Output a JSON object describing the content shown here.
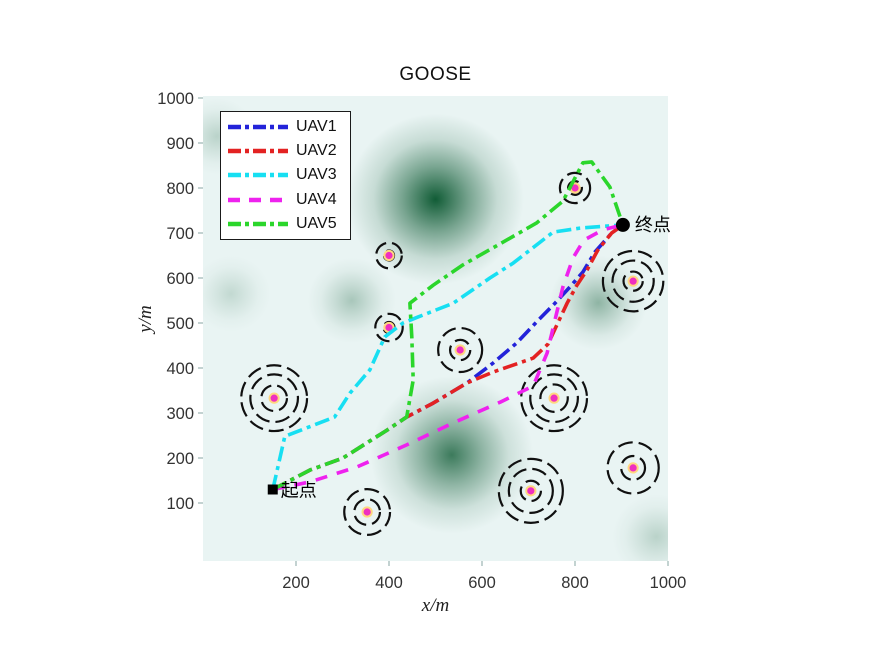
{
  "window": {
    "background": "#ffffff"
  },
  "chart_data": {
    "type": "line",
    "title": "GOOSE",
    "xlabel": "x/m",
    "ylabel": "y/m",
    "xlim": [
      0,
      1000
    ],
    "ylim": [
      0,
      1000
    ],
    "xticks": [
      200,
      400,
      600,
      800,
      1000
    ],
    "yticks": [
      100,
      200,
      300,
      400,
      500,
      600,
      700,
      800,
      900,
      1000
    ],
    "grid": false,
    "legend": {
      "position": "top-left"
    },
    "colors": {
      "plot_background": "#e9f4f3",
      "threat_blob": "#115c36",
      "obstacle_ring": "#101010",
      "obstacle_center_fill": "#ef2fc0",
      "obstacle_center_halo": "#ffd780",
      "tick_text": "#333333",
      "annotation_text": "#000000"
    },
    "series": [
      {
        "name": "UAV1",
        "color": "#2323d9",
        "style": "dash-dot",
        "points": [
          [
            150,
            130
          ],
          [
            230,
            173
          ],
          [
            301,
            200
          ],
          [
            396,
            262
          ],
          [
            438,
            291
          ],
          [
            495,
            322
          ],
          [
            568,
            367
          ],
          [
            624,
            411
          ],
          [
            675,
            456
          ],
          [
            718,
            503
          ],
          [
            757,
            544
          ],
          [
            789,
            580
          ],
          [
            817,
            613
          ],
          [
            843,
            658
          ],
          [
            879,
            700
          ],
          [
            903,
            718
          ]
        ]
      },
      {
        "name": "UAV2",
        "color": "#e32222",
        "style": "dash-dot",
        "points": [
          [
            150,
            130
          ],
          [
            230,
            173
          ],
          [
            301,
            200
          ],
          [
            396,
            262
          ],
          [
            438,
            291
          ],
          [
            495,
            322
          ],
          [
            568,
            367
          ],
          [
            624,
            391
          ],
          [
            710,
            422
          ],
          [
            742,
            453
          ],
          [
            763,
            500
          ],
          [
            783,
            544
          ],
          [
            804,
            584
          ],
          [
            826,
            618
          ],
          [
            849,
            662
          ],
          [
            879,
            700
          ],
          [
            903,
            718
          ]
        ]
      },
      {
        "name": "UAV3",
        "color": "#17dff2",
        "style": "dash-dot",
        "points": [
          [
            150,
            130
          ],
          [
            176,
            248
          ],
          [
            283,
            291
          ],
          [
            316,
            344
          ],
          [
            359,
            396
          ],
          [
            391,
            469
          ],
          [
            430,
            500
          ],
          [
            462,
            513
          ],
          [
            538,
            544
          ],
          [
            617,
            600
          ],
          [
            667,
            633
          ],
          [
            753,
            702
          ],
          [
            811,
            711
          ],
          [
            903,
            718
          ]
        ]
      },
      {
        "name": "UAV4",
        "color": "#ee22ee",
        "style": "dashed",
        "points": [
          [
            150,
            130
          ],
          [
            230,
            147
          ],
          [
            331,
            180
          ],
          [
            438,
            229
          ],
          [
            538,
            278
          ],
          [
            639,
            324
          ],
          [
            710,
            360
          ],
          [
            740,
            433
          ],
          [
            757,
            507
          ],
          [
            774,
            580
          ],
          [
            796,
            645
          ],
          [
            819,
            684
          ],
          [
            860,
            707
          ],
          [
            903,
            718
          ]
        ]
      },
      {
        "name": "UAV5",
        "color": "#2bd62b",
        "style": "dash-dot",
        "points": [
          [
            150,
            130
          ],
          [
            230,
            173
          ],
          [
            301,
            200
          ],
          [
            396,
            262
          ],
          [
            438,
            291
          ],
          [
            452,
            373
          ],
          [
            449,
            469
          ],
          [
            445,
            544
          ],
          [
            495,
            584
          ],
          [
            559,
            629
          ],
          [
            639,
            676
          ],
          [
            717,
            722
          ],
          [
            774,
            771
          ],
          [
            817,
            856
          ],
          [
            836,
            858
          ],
          [
            875,
            802
          ],
          [
            903,
            718
          ]
        ]
      }
    ],
    "obstacles": [
      {
        "x": 400,
        "y": 650,
        "rings": [
          11,
          28
        ]
      },
      {
        "x": 800,
        "y": 800,
        "rings": [
          15,
          33
        ]
      },
      {
        "x": 925,
        "y": 593,
        "rings": [
          21,
          45,
          66
        ]
      },
      {
        "x": 400,
        "y": 490,
        "rings": [
          12,
          30
        ]
      },
      {
        "x": 553,
        "y": 440,
        "rings": [
          22,
          48
        ]
      },
      {
        "x": 153,
        "y": 333,
        "rings": [
          28,
          52,
          72
        ]
      },
      {
        "x": 755,
        "y": 333,
        "rings": [
          30,
          52,
          72
        ]
      },
      {
        "x": 705,
        "y": 127,
        "rings": [
          22,
          48,
          70
        ]
      },
      {
        "x": 925,
        "y": 178,
        "rings": [
          26,
          56
        ]
      },
      {
        "x": 353,
        "y": 80,
        "rings": [
          28,
          50
        ]
      }
    ],
    "threat_blobs": [
      {
        "x": 500,
        "y": 775,
        "r": 190,
        "intensity": 1.0
      },
      {
        "x": 535,
        "y": 207,
        "r": 175,
        "intensity": 0.8
      },
      {
        "x": 850,
        "y": 545,
        "r": 105,
        "intensity": 0.42
      },
      {
        "x": 320,
        "y": 550,
        "r": 95,
        "intensity": 0.3
      },
      {
        "x": 60,
        "y": 565,
        "r": 85,
        "intensity": 0.18
      },
      {
        "x": 30,
        "y": 915,
        "r": 85,
        "intensity": 0.22
      },
      {
        "x": 975,
        "y": 25,
        "r": 95,
        "intensity": 0.22
      }
    ],
    "annotations": {
      "start": {
        "label": "起点",
        "x": 150,
        "y": 130,
        "marker": "square"
      },
      "end": {
        "label": "终点",
        "x": 903,
        "y": 718,
        "marker": "circle"
      }
    }
  }
}
